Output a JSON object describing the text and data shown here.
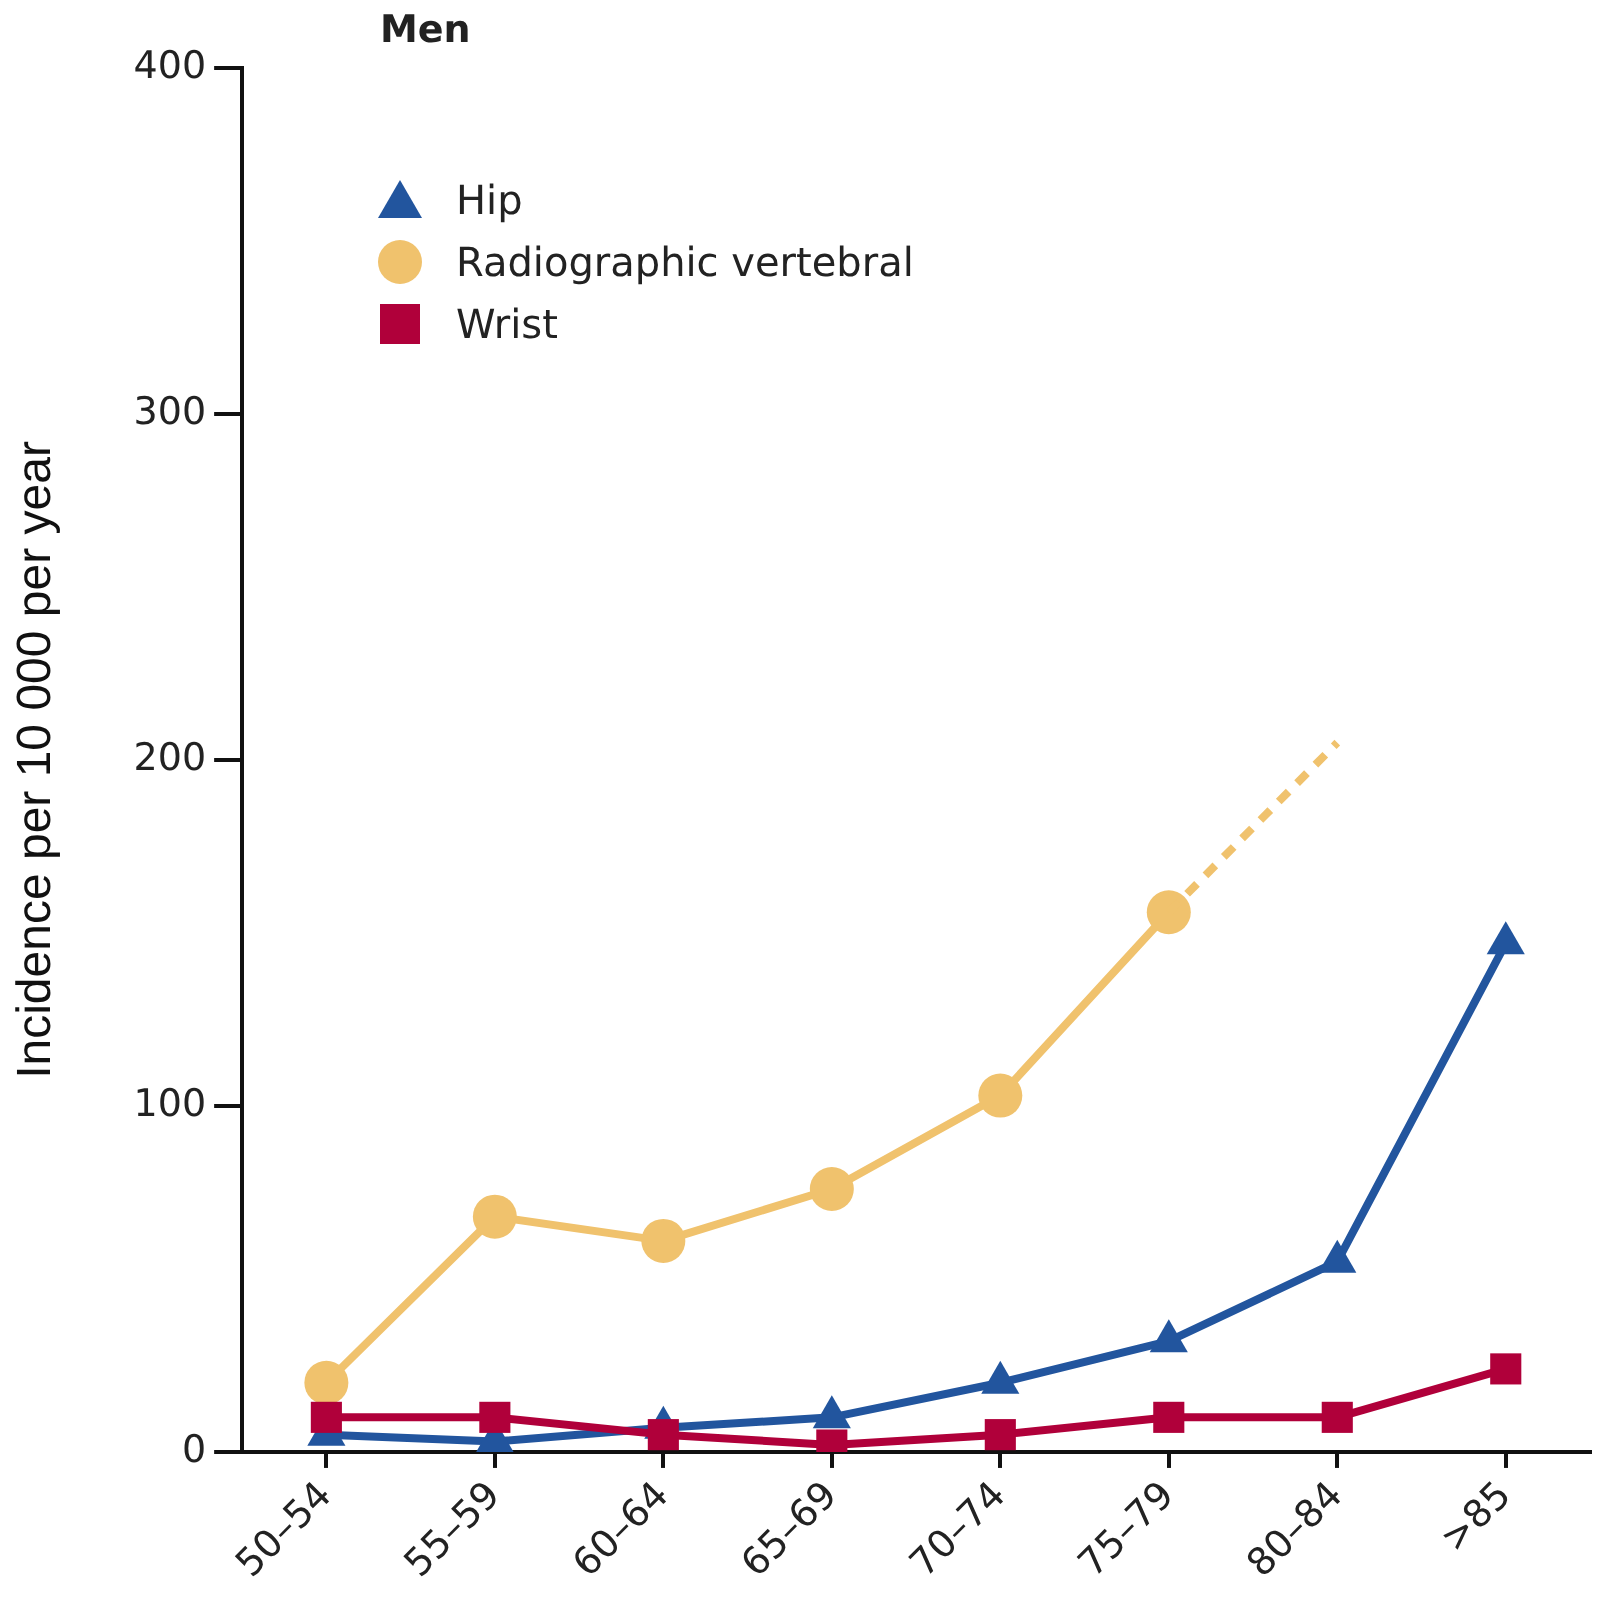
{
  "chart_data": {
    "type": "line",
    "title": "Men",
    "ylabel": "Incidence per 10 000 per year",
    "categories": [
      "50–54",
      "55–59",
      "60–64",
      "65–69",
      "70–74",
      "75–79",
      "80–84",
      ">85"
    ],
    "series": [
      {
        "name": "Hip",
        "color": "#22559e",
        "marker": "triangle",
        "values": [
          5,
          3,
          7,
          10,
          20,
          32,
          55,
          147
        ]
      },
      {
        "name": "Radiographic vertebral",
        "color": "#f0c26d",
        "marker": "circle",
        "values": [
          20,
          68,
          61,
          76,
          103,
          156,
          null,
          null
        ]
      },
      {
        "color": "#f0c26d",
        "line_style": "dashed",
        "values": [
          null,
          null,
          null,
          null,
          null,
          156,
          205,
          null
        ]
      },
      {
        "name": "Wrist",
        "color": "#b0003a",
        "marker": "square",
        "values": [
          10,
          10,
          5,
          2,
          5,
          10,
          10,
          24
        ]
      }
    ],
    "ylim": [
      0,
      400
    ],
    "yticks": [
      0,
      100,
      200,
      300,
      400
    ],
    "grid": false,
    "legend": "top left"
  }
}
